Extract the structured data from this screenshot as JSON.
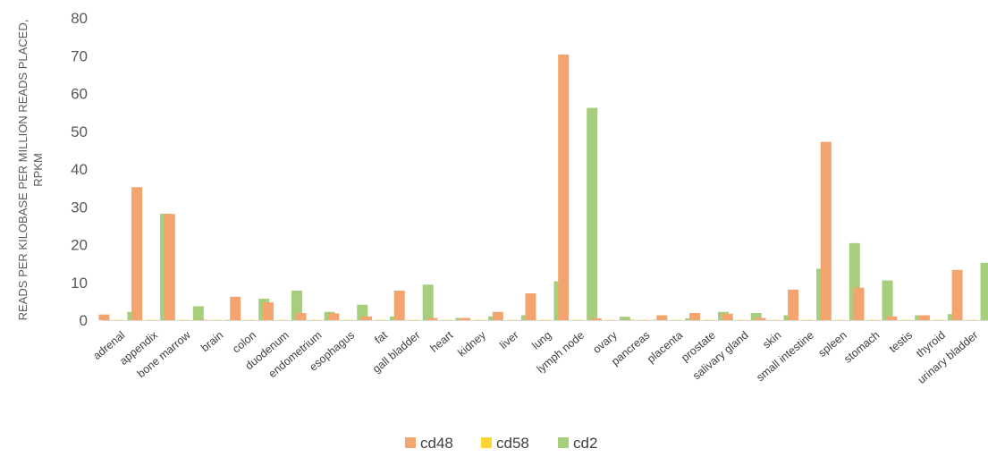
{
  "chart_data": {
    "type": "bar",
    "title": "",
    "ylabel_lines": [
      "READS PER KILOBASE PER MILLION READS PLACED,",
      "RPKM"
    ],
    "xlabel": "",
    "ylim": [
      0,
      80
    ],
    "yticks": [
      0,
      10,
      20,
      30,
      40,
      50,
      60,
      70,
      80
    ],
    "grid": false,
    "legend_position": "bottom",
    "categories": [
      "adrenal",
      "appendix",
      "bone marrow",
      "brain",
      "colon",
      "duodenum",
      "endometrium",
      "esophagus",
      "fat",
      "gall bladder",
      "heart",
      "kidney",
      "liver",
      "lung",
      "lymph node",
      "ovary",
      "pancreas",
      "placenta",
      "prostate",
      "salivary gland",
      "skin",
      "small intestine",
      "spleen",
      "stomach",
      "testis",
      "thyroid",
      "urinary bladder"
    ],
    "series": [
      {
        "name": "cd48",
        "color": "#F4A46E",
        "values": [
          1.5,
          35.2,
          28.1,
          0.1,
          6.2,
          4.7,
          1.9,
          1.8,
          1.0,
          7.8,
          0.6,
          0.6,
          2.2,
          7.1,
          70.3,
          0.5,
          0.1,
          1.3,
          1.9,
          1.7,
          0.6,
          8.1,
          47.2,
          8.6,
          1.0,
          1.3,
          13.3
        ]
      },
      {
        "name": "cd58",
        "color": "#FFD633",
        "values": [
          0.1,
          0.1,
          0.1,
          0.1,
          0.1,
          0.1,
          0.1,
          0.1,
          0.1,
          0.1,
          0.1,
          0.1,
          0.1,
          0.1,
          0.1,
          0.1,
          0.1,
          0.1,
          0.1,
          0.1,
          0.1,
          0.1,
          0.1,
          0.1,
          0.1,
          0.1,
          0.1
        ]
      },
      {
        "name": "cd2",
        "color": "#A6CE7C",
        "values": [
          2.2,
          28.2,
          3.7,
          0.1,
          5.7,
          7.8,
          2.2,
          4.1,
          1.0,
          9.4,
          0.6,
          1.0,
          1.3,
          10.3,
          56.2,
          0.9,
          0.1,
          0.5,
          2.2,
          1.9,
          1.3,
          13.6,
          20.4,
          10.5,
          1.3,
          1.6,
          15.2
        ]
      }
    ]
  }
}
